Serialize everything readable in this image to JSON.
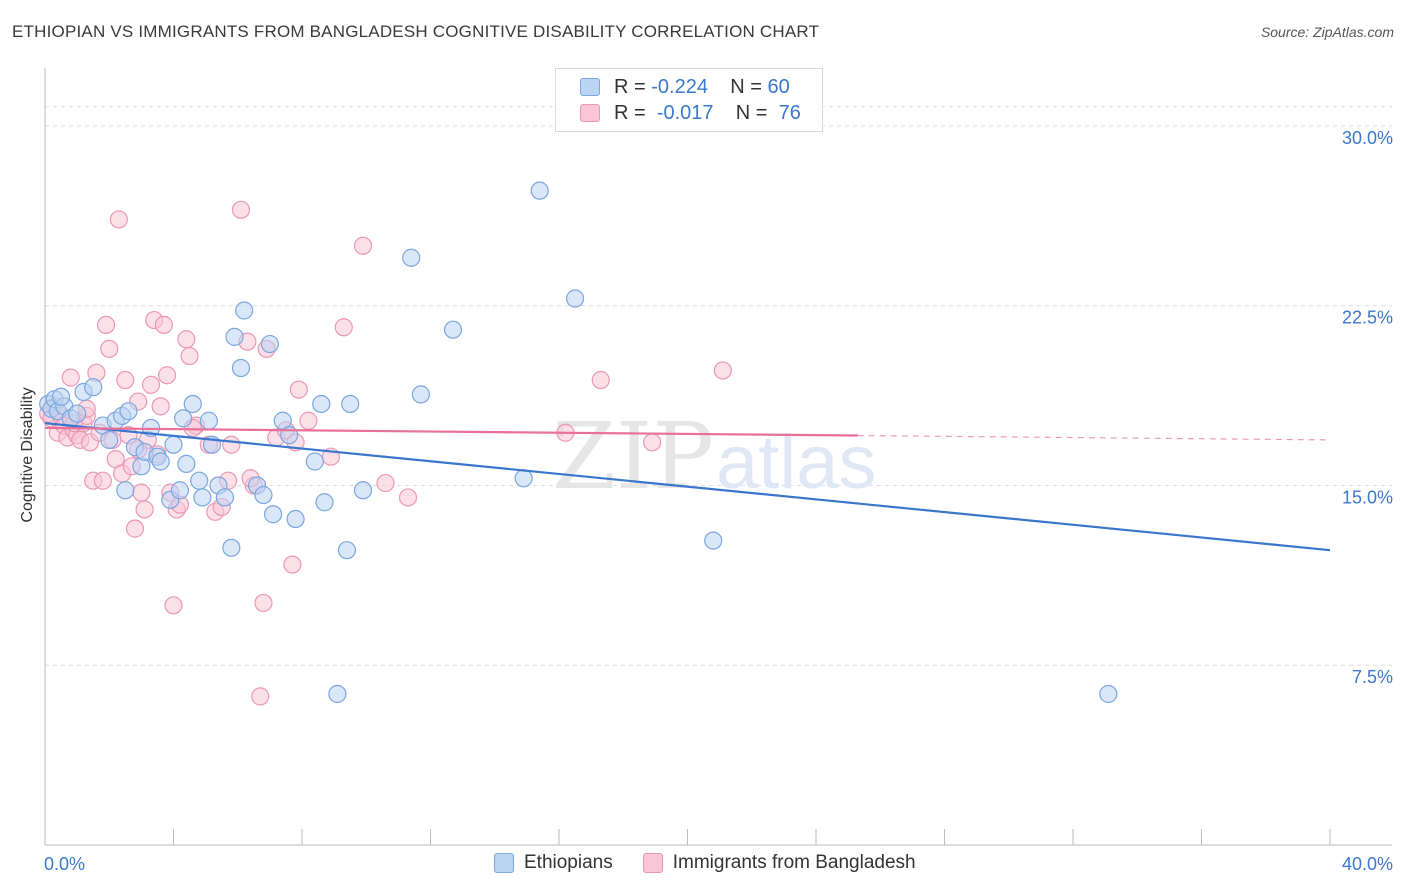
{
  "title": "ETHIOPIAN VS IMMIGRANTS FROM BANGLADESH COGNITIVE DISABILITY CORRELATION CHART",
  "source": "Source: ZipAtlas.com",
  "watermark": {
    "zip": "ZIP",
    "atlas": "atlas"
  },
  "legend": {
    "r_label": "R =",
    "n_label": "N =",
    "rows": [
      {
        "r": "-0.224",
        "n": "60",
        "color": "#bcd4f3"
      },
      {
        "r": "-0.017",
        "n": "76",
        "color": "#f8c6d6"
      }
    ]
  },
  "bottom_legend": {
    "items": [
      {
        "label": "Ethiopians",
        "color": "#bcd4f3"
      },
      {
        "label": "Immigrants from Bangladesh",
        "color": "#f8c6d6"
      }
    ]
  },
  "colors": {
    "blue_fill": "#bcd4f3",
    "blue_stroke": "#7ba6df",
    "blue_line": "#3a77cc",
    "pink_fill": "#f8c6d6",
    "pink_stroke": "#ea98b5",
    "pink_line": "#e8709a",
    "axis_text": "#3c78cc",
    "grid": "#dddddd"
  },
  "chart_data": {
    "type": "scatter",
    "title": "ETHIOPIAN VS IMMIGRANTS FROM BANGLADESH COGNITIVE DISABILITY CORRELATION CHART",
    "xlabel": "",
    "ylabel": "Cognitive Disability",
    "xlim": [
      0,
      40
    ],
    "ylim": [
      0,
      32
    ],
    "x_tick_labels": [
      "0.0%",
      "40.0%"
    ],
    "y_ticks": [
      7.5,
      15.0,
      22.5,
      30.0
    ],
    "y_tick_labels": [
      "7.5%",
      "15.0%",
      "22.5%",
      "30.0%"
    ],
    "grid": "horizontal dashed",
    "legend_position": "top-center",
    "series": [
      {
        "name": "Ethiopians",
        "r": -0.224,
        "n": 60,
        "trend": {
          "x": [
            0,
            40
          ],
          "y": [
            17.6,
            12.3
          ],
          "solid_to": 40
        },
        "points": [
          [
            0.1,
            18.4
          ],
          [
            0.2,
            18.2
          ],
          [
            0.3,
            18.6
          ],
          [
            0.4,
            18.1
          ],
          [
            0.6,
            18.3
          ],
          [
            0.8,
            17.8
          ],
          [
            1.2,
            18.9
          ],
          [
            1.5,
            19.1
          ],
          [
            1.8,
            17.5
          ],
          [
            2.0,
            16.9
          ],
          [
            2.2,
            17.7
          ],
          [
            2.4,
            17.9
          ],
          [
            2.5,
            14.8
          ],
          [
            2.6,
            18.1
          ],
          [
            2.8,
            16.6
          ],
          [
            3.0,
            15.8
          ],
          [
            3.1,
            16.4
          ],
          [
            3.3,
            17.4
          ],
          [
            3.5,
            16.2
          ],
          [
            3.6,
            16.0
          ],
          [
            3.9,
            14.4
          ],
          [
            4.0,
            16.7
          ],
          [
            4.2,
            14.8
          ],
          [
            4.3,
            17.8
          ],
          [
            4.4,
            15.9
          ],
          [
            4.6,
            18.4
          ],
          [
            4.8,
            15.2
          ],
          [
            4.9,
            14.5
          ],
          [
            5.1,
            17.7
          ],
          [
            5.2,
            16.7
          ],
          [
            5.4,
            15.0
          ],
          [
            5.6,
            14.5
          ],
          [
            5.8,
            12.4
          ],
          [
            5.9,
            21.2
          ],
          [
            6.1,
            19.9
          ],
          [
            6.2,
            22.3
          ],
          [
            6.6,
            15.0
          ],
          [
            6.8,
            14.6
          ],
          [
            7.0,
            20.9
          ],
          [
            7.1,
            13.8
          ],
          [
            7.4,
            17.7
          ],
          [
            7.6,
            17.1
          ],
          [
            7.8,
            13.6
          ],
          [
            8.4,
            16.0
          ],
          [
            8.6,
            18.4
          ],
          [
            8.7,
            14.3
          ],
          [
            9.1,
            6.3
          ],
          [
            9.4,
            12.3
          ],
          [
            9.5,
            18.4
          ],
          [
            9.9,
            14.8
          ],
          [
            11.4,
            24.5
          ],
          [
            11.7,
            18.8
          ],
          [
            12.7,
            21.5
          ],
          [
            14.9,
            15.3
          ],
          [
            15.4,
            27.3
          ],
          [
            16.5,
            22.8
          ],
          [
            20.8,
            12.7
          ],
          [
            33.1,
            6.3
          ],
          [
            0.5,
            18.7
          ],
          [
            1.0,
            18.0
          ]
        ]
      },
      {
        "name": "Immigrants from Bangladesh",
        "r": -0.017,
        "n": 76,
        "trend": {
          "x": [
            0,
            40
          ],
          "y": [
            17.4,
            16.9
          ],
          "solid_to": 25.3
        },
        "points": [
          [
            0.1,
            18.0
          ],
          [
            0.2,
            17.8
          ],
          [
            0.3,
            18.3
          ],
          [
            0.4,
            17.2
          ],
          [
            0.5,
            17.9
          ],
          [
            0.6,
            17.5
          ],
          [
            0.7,
            17.0
          ],
          [
            0.8,
            19.5
          ],
          [
            0.9,
            17.3
          ],
          [
            1.0,
            17.1
          ],
          [
            1.1,
            16.9
          ],
          [
            1.2,
            17.6
          ],
          [
            1.3,
            17.9
          ],
          [
            1.4,
            16.8
          ],
          [
            1.5,
            15.2
          ],
          [
            1.6,
            19.7
          ],
          [
            1.7,
            17.2
          ],
          [
            1.8,
            15.2
          ],
          [
            1.9,
            21.7
          ],
          [
            2.0,
            20.7
          ],
          [
            2.1,
            16.9
          ],
          [
            2.2,
            16.1
          ],
          [
            2.3,
            26.1
          ],
          [
            2.4,
            15.5
          ],
          [
            2.5,
            19.4
          ],
          [
            2.6,
            17.1
          ],
          [
            2.7,
            15.8
          ],
          [
            2.8,
            13.2
          ],
          [
            2.9,
            18.5
          ],
          [
            3.0,
            14.7
          ],
          [
            3.1,
            14.0
          ],
          [
            3.2,
            16.9
          ],
          [
            3.3,
            19.2
          ],
          [
            3.4,
            21.9
          ],
          [
            3.5,
            16.3
          ],
          [
            3.6,
            18.3
          ],
          [
            3.7,
            21.7
          ],
          [
            3.8,
            19.6
          ],
          [
            3.9,
            14.7
          ],
          [
            4.0,
            10.0
          ],
          [
            4.1,
            14.0
          ],
          [
            4.2,
            14.2
          ],
          [
            4.4,
            21.1
          ],
          [
            4.5,
            20.4
          ],
          [
            4.7,
            17.5
          ],
          [
            5.1,
            16.7
          ],
          [
            5.3,
            13.9
          ],
          [
            5.5,
            14.1
          ],
          [
            5.7,
            15.2
          ],
          [
            5.8,
            16.7
          ],
          [
            6.1,
            26.5
          ],
          [
            6.3,
            21.0
          ],
          [
            6.5,
            15.0
          ],
          [
            6.7,
            6.2
          ],
          [
            6.8,
            10.1
          ],
          [
            6.9,
            20.7
          ],
          [
            7.2,
            17.0
          ],
          [
            7.5,
            17.3
          ],
          [
            7.7,
            11.7
          ],
          [
            7.8,
            16.8
          ],
          [
            7.9,
            19.0
          ],
          [
            8.2,
            17.7
          ],
          [
            8.9,
            16.2
          ],
          [
            9.3,
            21.6
          ],
          [
            9.9,
            25.0
          ],
          [
            10.6,
            15.1
          ],
          [
            11.3,
            14.5
          ],
          [
            16.2,
            17.2
          ],
          [
            17.3,
            19.4
          ],
          [
            18.9,
            16.8
          ],
          [
            21.1,
            19.8
          ],
          [
            2.9,
            16.5
          ],
          [
            1.3,
            18.2
          ],
          [
            0.9,
            17.6
          ],
          [
            6.4,
            15.3
          ],
          [
            4.6,
            17.4
          ]
        ]
      }
    ]
  }
}
